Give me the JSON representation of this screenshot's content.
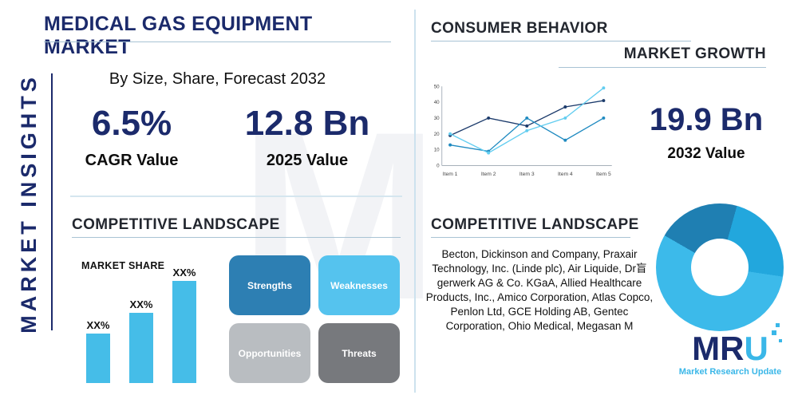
{
  "accent_color": "#3ab7e8",
  "navy_color": "#1b2a6b",
  "sidebar": {
    "label": "MARKET INSIGHTS"
  },
  "header": {
    "title": "MEDICAL GAS EQUIPMENT MARKET",
    "subtitle": "By Size, Share, Forecast 2032"
  },
  "stats": {
    "cagr_value": "6.5%",
    "cagr_label": "CAGR Value",
    "value_2025": "12.8 Bn",
    "label_2025": "2025 Value",
    "value_2032": "19.9 Bn",
    "label_2032": "2032 Value"
  },
  "sections": {
    "consumer_behavior": "CONSUMER BEHAVIOR",
    "market_growth": "MARKET GROWTH",
    "competitive_landscape_left": "COMPETITIVE LANDSCAPE",
    "competitive_landscape_right": "COMPETITIVE LANDSCAPE"
  },
  "swot": [
    {
      "label": "Strengths",
      "color": "#2d7fb3"
    },
    {
      "label": "Weaknesses",
      "color": "#55c3ee"
    },
    {
      "label": "Opportunities",
      "color": "#b9bdc1"
    },
    {
      "label": "Threats",
      "color": "#77797d"
    }
  ],
  "competitive_right": {
    "companies": "Becton, Dickinson and Company, Praxair Technology, Inc. (Linde plc), Air Liquide, Dr盲gerwerk AG & Co. KGaA, Allied Healthcare Products, Inc., Amico Corporation, Atlas Copco, Penlon Ltd, GCE Holding AB, Gentec Corporation, Ohio Medical, Megasan M"
  },
  "logo": {
    "m": "M",
    "r": "R",
    "u": "U",
    "tagline": "Market Research Update"
  },
  "watermark": "M",
  "chart_data": [
    {
      "type": "line",
      "x": [
        "Item 1",
        "Item 2",
        "Item 3",
        "Item 4",
        "Item 5"
      ],
      "series": [
        {
          "name": "series-dark-navy",
          "color": "#1b3a6b",
          "values": [
            19,
            30,
            25,
            37,
            41
          ]
        },
        {
          "name": "series-medium-blue",
          "color": "#1f8ac0",
          "values": [
            13,
            9,
            30,
            16,
            30
          ]
        },
        {
          "name": "series-light-cyan",
          "color": "#63cdf0",
          "values": [
            20,
            8,
            22,
            30,
            49
          ]
        }
      ],
      "ylim": [
        0,
        50
      ],
      "yticks": [
        0,
        10,
        20,
        30,
        40,
        50
      ],
      "grid": false,
      "legend": false
    },
    {
      "type": "bar",
      "title": "MARKET SHARE",
      "labels": [
        "XX%",
        "XX%",
        "XX%"
      ],
      "values": [
        31,
        44,
        64
      ],
      "color": "#45bde8"
    },
    {
      "type": "pie",
      "donut": true,
      "start_angle": 300,
      "slices": [
        {
          "value": 21,
          "color": "#1f7fb2"
        },
        {
          "value": 23,
          "color": "#22a7dd"
        },
        {
          "value": 56,
          "color": "#3cbaea"
        }
      ]
    }
  ]
}
